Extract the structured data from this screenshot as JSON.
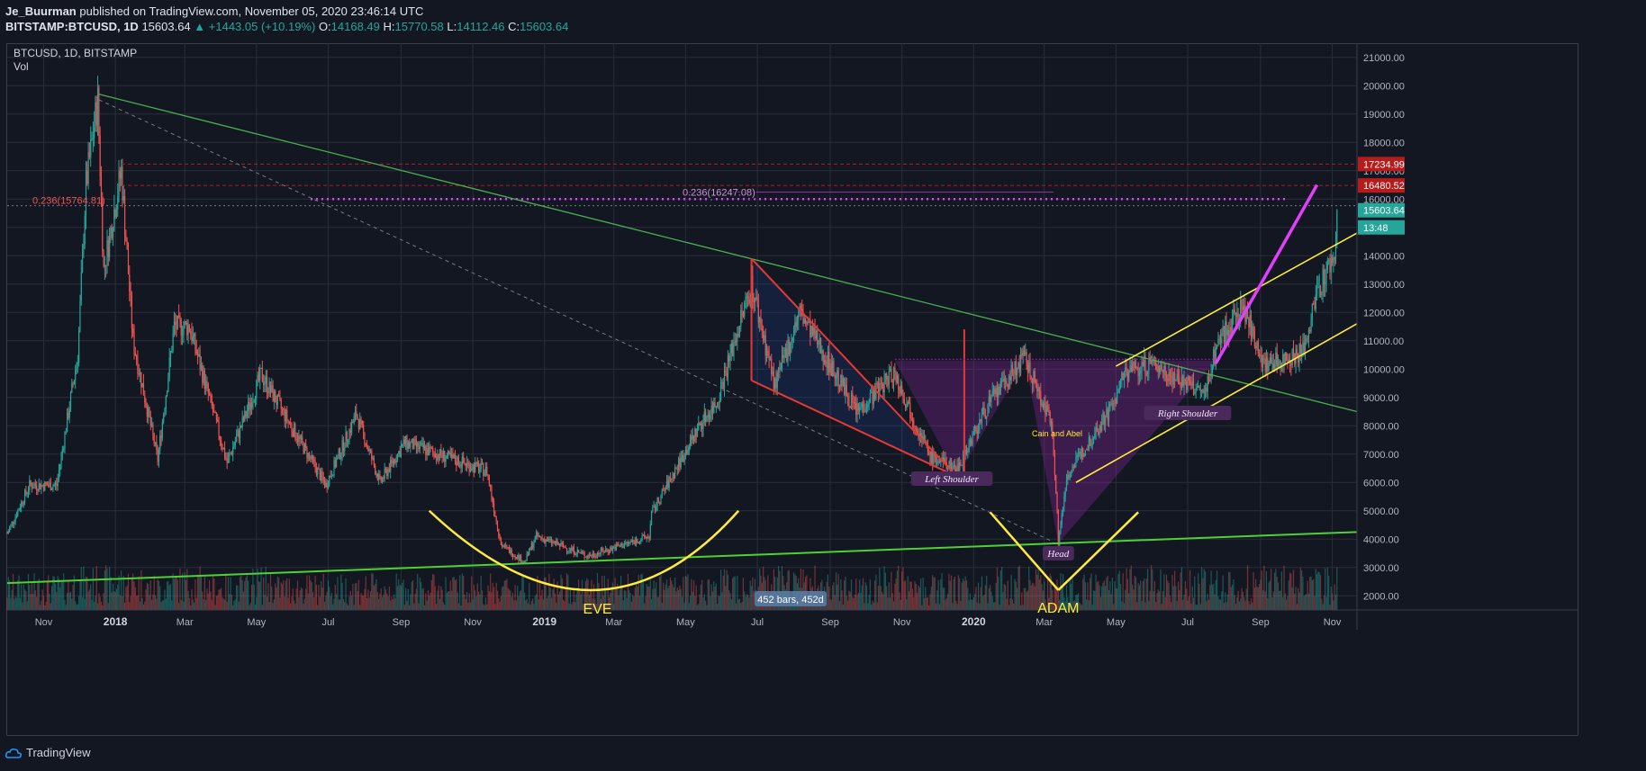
{
  "header": {
    "publisher": "Je_Buurman",
    "published_text": "published on TradingView.com, November 05, 2020 23:46:14 UTC",
    "symbol_full": "BITSTAMP:BTCUSD, 1D",
    "last": "15603.64",
    "change": "▲ +1443.05 (+10.19%)",
    "o_label": "O:",
    "o_val": "14168.49",
    "h_label": "H:",
    "h_val": "15770.58",
    "l_label": "L:",
    "l_val": "14112.46",
    "c_label": "C:",
    "c_val": "15603.64"
  },
  "legend": {
    "series": "BTCUSD, 1D, BITSTAMP",
    "vol": "Vol"
  },
  "footer": {
    "brand": "TradingView"
  },
  "colors": {
    "bg": "#131722",
    "up": "#26a69a",
    "down": "#ef5350",
    "grid": "#2a2e39",
    "yellow": "#ffeb3b",
    "green": "#4caf50",
    "magenta": "#e040fb",
    "red": "#e53935"
  },
  "chart_data": {
    "type": "candlestick",
    "title": "",
    "ylim": [
      1500,
      21500
    ],
    "y_ticks": [
      2000,
      3000,
      4000,
      5000,
      6000,
      7000,
      8000,
      9000,
      10000,
      11000,
      12000,
      13000,
      14000,
      15000,
      16000,
      17000,
      18000,
      19000,
      20000,
      21000
    ],
    "y_tick_labels": [
      "2000.00",
      "3000.00",
      "4000.00",
      "5000.00",
      "6000.00",
      "7000.00",
      "8000.00",
      "9000.00",
      "10000.00",
      "11000.00",
      "12000.00",
      "13000.00",
      "14000.00",
      "15000.00",
      "16000.00",
      "17000.00",
      "18000.00",
      "19000.00",
      "20000.00",
      "21000.00"
    ],
    "x_range": [
      "2017-10-01",
      "2020-11-22"
    ],
    "x_ticks": [
      {
        "date": "2017-11-01",
        "label": "Nov"
      },
      {
        "date": "2018-01-01",
        "label": "2018"
      },
      {
        "date": "2018-03-01",
        "label": "Mar"
      },
      {
        "date": "2018-05-01",
        "label": "May"
      },
      {
        "date": "2018-07-01",
        "label": "Jul"
      },
      {
        "date": "2018-09-01",
        "label": "Sep"
      },
      {
        "date": "2018-11-01",
        "label": "Nov"
      },
      {
        "date": "2019-01-01",
        "label": "2019"
      },
      {
        "date": "2019-03-01",
        "label": "Mar"
      },
      {
        "date": "2019-05-01",
        "label": "May"
      },
      {
        "date": "2019-07-01",
        "label": "Jul"
      },
      {
        "date": "2019-09-01",
        "label": "Sep"
      },
      {
        "date": "2019-11-01",
        "label": "Nov"
      },
      {
        "date": "2020-01-01",
        "label": "2020"
      },
      {
        "date": "2020-03-01",
        "label": "Mar"
      },
      {
        "date": "2020-05-01",
        "label": "May"
      },
      {
        "date": "2020-07-01",
        "label": "Jul"
      },
      {
        "date": "2020-09-01",
        "label": "Sep"
      },
      {
        "date": "2020-11-01",
        "label": "Nov"
      }
    ],
    "price_path": [
      [
        "2017-10-01",
        4200
      ],
      [
        "2017-10-20",
        5900
      ],
      [
        "2017-11-12",
        5900
      ],
      [
        "2017-11-30",
        10500
      ],
      [
        "2017-12-07",
        16500
      ],
      [
        "2017-12-17",
        19500
      ],
      [
        "2017-12-22",
        13500
      ],
      [
        "2018-01-06",
        17000
      ],
      [
        "2018-01-16",
        11000
      ],
      [
        "2018-02-06",
        6800
      ],
      [
        "2018-02-20",
        11500
      ],
      [
        "2018-03-05",
        11500
      ],
      [
        "2018-04-06",
        6700
      ],
      [
        "2018-05-05",
        9800
      ],
      [
        "2018-06-29",
        5900
      ],
      [
        "2018-07-25",
        8400
      ],
      [
        "2018-08-14",
        6000
      ],
      [
        "2018-09-04",
        7400
      ],
      [
        "2018-11-13",
        6400
      ],
      [
        "2018-11-25",
        3800
      ],
      [
        "2018-12-15",
        3200
      ],
      [
        "2018-12-25",
        4100
      ],
      [
        "2019-02-07",
        3400
      ],
      [
        "2019-03-31",
        4100
      ],
      [
        "2019-04-02",
        4900
      ],
      [
        "2019-05-14",
        8100
      ],
      [
        "2019-05-27",
        8800
      ],
      [
        "2019-06-26",
        13000
      ],
      [
        "2019-07-16",
        9400
      ],
      [
        "2019-08-06",
        12000
      ],
      [
        "2019-09-24",
        8500
      ],
      [
        "2019-10-25",
        9900
      ],
      [
        "2019-11-25",
        6900
      ],
      [
        "2019-12-18",
        6500
      ],
      [
        "2020-01-14",
        8800
      ],
      [
        "2020-02-13",
        10400
      ],
      [
        "2020-03-08",
        8000
      ],
      [
        "2020-03-12",
        4900
      ],
      [
        "2020-03-13",
        3850
      ],
      [
        "2020-03-20",
        6200
      ],
      [
        "2020-04-29",
        8800
      ],
      [
        "2020-05-09",
        9900
      ],
      [
        "2020-06-01",
        10200
      ],
      [
        "2020-07-15",
        9100
      ],
      [
        "2020-07-27",
        11000
      ],
      [
        "2020-08-17",
        12200
      ],
      [
        "2020-09-05",
        10100
      ],
      [
        "2020-10-07",
        10600
      ],
      [
        "2020-10-21",
        12900
      ],
      [
        "2020-11-04",
        14100
      ],
      [
        "2020-11-05",
        15603.64
      ]
    ],
    "last_price": 15603.64,
    "price_labels": [
      {
        "value": "17234.99",
        "price": 17234.99,
        "color": "#b71c1c"
      },
      {
        "value": "16480.52",
        "price": 16480.52,
        "color": "#b71c1c"
      },
      {
        "value": "16000.00",
        "price": 16000,
        "color": null
      },
      {
        "value": "15603.64",
        "price": 15603.64,
        "color": "#26a69a"
      },
      {
        "value": "13:48",
        "price": 15000,
        "color": "#26a69a"
      }
    ],
    "fib_labels": {
      "left": "0.236(15764.81)",
      "center": "0.236(16247.08)"
    },
    "annotations": {
      "eve": "EVE",
      "adam": "ADAM",
      "left_shoulder": "Left Shoulder",
      "head": "Head",
      "right_shoulder": "Right Shoulder",
      "cain_abel": "Cain and Abel",
      "bars_label": "452 bars, 452d"
    },
    "volume": "shown as bars at bottom (values not labeled)"
  }
}
